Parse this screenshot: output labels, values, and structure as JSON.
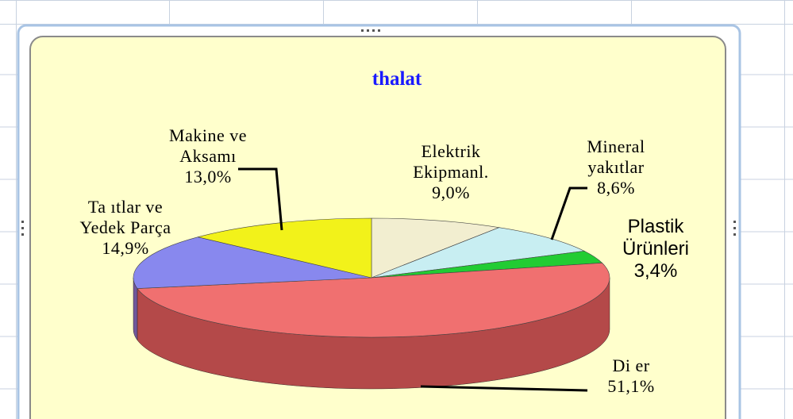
{
  "chart_data": {
    "type": "pie",
    "title": "thalat",
    "categories": [
      "Elektrik Ekipmanl.",
      "Mineral yakıtlar",
      "Plastik Ürünleri",
      "Di er",
      "Ta ıtlar ve Yedek Parça",
      "Makine ve Aksamı"
    ],
    "values": [
      9.0,
      8.6,
      3.4,
      51.1,
      14.9,
      13.0
    ],
    "value_labels": [
      "9,0%",
      "8,6%",
      "3,4%",
      "51,1%",
      "14,9%",
      "13,0%"
    ],
    "colors": [
      "#f2eed0",
      "#c8eef2",
      "#22cc33",
      "#f07070",
      "#8888ee",
      "#f2f21a"
    ]
  }
}
